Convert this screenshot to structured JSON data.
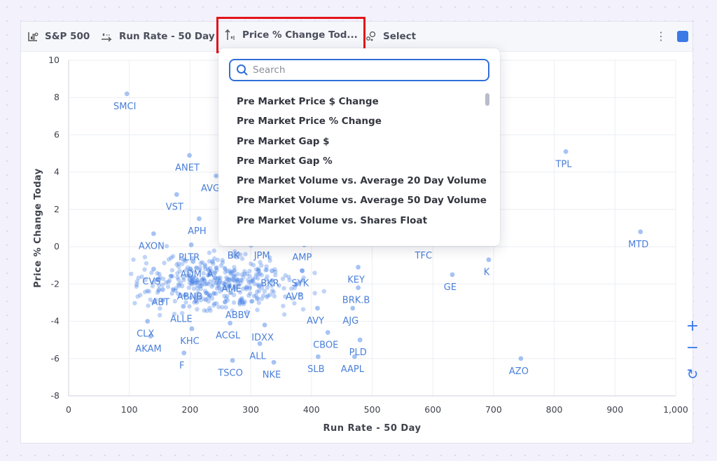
{
  "toolbar": {
    "universe": "S&P 500",
    "x_metric": "Run Rate - 50 Day",
    "y_metric": "Price % Change Tod...",
    "select": "Select",
    "more": "⋮",
    "swatch_color": "#3a79e6"
  },
  "dropdown": {
    "search_placeholder": "Search",
    "options": [
      "Pre Market Price $ Change",
      "Pre Market Price % Change",
      "Pre Market Gap $",
      "Pre Market Gap %",
      "Pre Market Volume vs. Average 20 Day Volume",
      "Pre Market Volume vs. Average 50 Day Volume",
      "Pre Market Volume vs. Shares Float"
    ]
  },
  "controls": {
    "zoom_in": "+",
    "zoom_out": "−",
    "reset": "↻"
  },
  "chart_data": {
    "type": "scatter",
    "xlabel": "Run Rate - 50 Day",
    "ylabel": "Price % Change Today",
    "xlim": [
      0,
      1000
    ],
    "ylim": [
      -8,
      10
    ],
    "x_ticks": [
      "0",
      "100",
      "200",
      "300",
      "400",
      "500",
      "600",
      "700",
      "800",
      "900",
      "1,000"
    ],
    "y_ticks": [
      "-8",
      "-6",
      "-4",
      "-2",
      "0",
      "2",
      "4",
      "6",
      "8",
      "10"
    ],
    "grid": true,
    "point_color": "#3a79e6",
    "labeled_points": [
      {
        "label": "SMCI",
        "x": 96,
        "y": 8.2
      },
      {
        "label": "ANET",
        "x": 199,
        "y": 4.9
      },
      {
        "label": "AVGO",
        "x": 243,
        "y": 3.8
      },
      {
        "label": "VST",
        "x": 178,
        "y": 2.8
      },
      {
        "label": "APH",
        "x": 215,
        "y": 1.5
      },
      {
        "label": "AXON",
        "x": 140,
        "y": 0.7
      },
      {
        "label": "PLTR",
        "x": 202,
        "y": 0.1
      },
      {
        "label": "BK",
        "x": 275,
        "y": 0.2
      },
      {
        "label": "JPM",
        "x": 322,
        "y": 0.2
      },
      {
        "label": "AMP",
        "x": 388,
        "y": 0.1
      },
      {
        "label": "TPL",
        "x": 819,
        "y": 5.1
      },
      {
        "label": "MTD",
        "x": 942,
        "y": 0.8
      },
      {
        "label": "TFC",
        "x": 588,
        "y": 0.2
      },
      {
        "label": "K",
        "x": 692,
        "y": -0.7
      },
      {
        "label": "GE",
        "x": 632,
        "y": -1.5
      },
      {
        "label": "ADM",
        "x": 205,
        "y": -0.8
      },
      {
        "label": "A",
        "x": 237,
        "y": -0.8
      },
      {
        "label": "CVS",
        "x": 140,
        "y": -1.2
      },
      {
        "label": "BKR",
        "x": 335,
        "y": -1.3
      },
      {
        "label": "SYK",
        "x": 385,
        "y": -1.3
      },
      {
        "label": "KEY",
        "x": 477,
        "y": -1.1
      },
      {
        "label": "ABNB",
        "x": 203,
        "y": -2.0
      },
      {
        "label": "AME",
        "x": 272,
        "y": -1.6
      },
      {
        "label": "ABT",
        "x": 155,
        "y": -2.3
      },
      {
        "label": "AVB",
        "x": 376,
        "y": -2.0
      },
      {
        "label": "BRK.B",
        "x": 477,
        "y": -2.2
      },
      {
        "label": "ALLE",
        "x": 189,
        "y": -3.2
      },
      {
        "label": "ABBV",
        "x": 282,
        "y": -3.0
      },
      {
        "label": "AVY",
        "x": 410,
        "y": -3.3
      },
      {
        "label": "AJG",
        "x": 468,
        "y": -3.3
      },
      {
        "label": "CLX",
        "x": 130,
        "y": -4.0
      },
      {
        "label": "KHC",
        "x": 203,
        "y": -4.4
      },
      {
        "label": "ACGL",
        "x": 266,
        "y": -4.1
      },
      {
        "label": "IDXX",
        "x": 323,
        "y": -4.2
      },
      {
        "label": "CBOE",
        "x": 427,
        "y": -4.6
      },
      {
        "label": "AKAM",
        "x": 135,
        "y": -4.8
      },
      {
        "label": "ALL",
        "x": 315,
        "y": -5.2
      },
      {
        "label": "PLD",
        "x": 480,
        "y": -5.0
      },
      {
        "label": "F",
        "x": 190,
        "y": -5.7
      },
      {
        "label": "TSCO",
        "x": 270,
        "y": -6.1
      },
      {
        "label": "NKE",
        "x": 338,
        "y": -6.2
      },
      {
        "label": "SLB",
        "x": 411,
        "y": -5.9
      },
      {
        "label": "AAPL",
        "x": 471,
        "y": -5.9
      },
      {
        "label": "AZO",
        "x": 745,
        "y": -6.0
      }
    ]
  }
}
